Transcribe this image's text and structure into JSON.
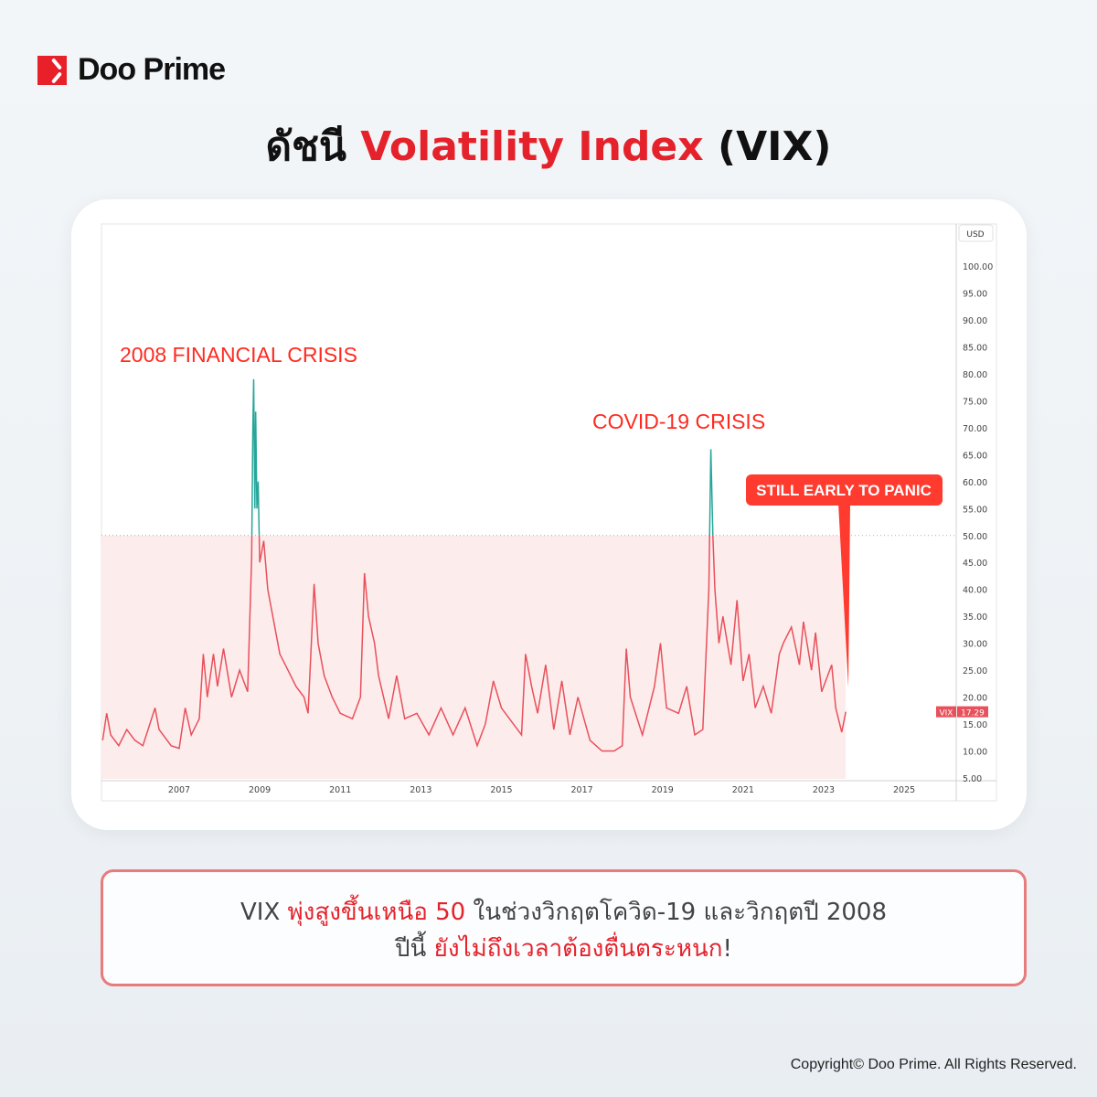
{
  "brand": {
    "name": "Doo Prime",
    "color": "#e8202a"
  },
  "title": {
    "prefix": "ดัชนี ",
    "highlight": "Volatility Index",
    "suffix": " (VIX)"
  },
  "chart_data": {
    "type": "line",
    "currency_label": "USD",
    "series": [
      {
        "name": "VIX",
        "last_value": "17.29",
        "color_below_50": "#e8505b",
        "color_above_50": "#26a69a",
        "points": [
          [
            2005.1,
            12
          ],
          [
            2005.2,
            17
          ],
          [
            2005.3,
            13
          ],
          [
            2005.5,
            11
          ],
          [
            2005.7,
            14
          ],
          [
            2005.9,
            12
          ],
          [
            2006.1,
            11
          ],
          [
            2006.4,
            18
          ],
          [
            2006.5,
            14
          ],
          [
            2006.8,
            11
          ],
          [
            2007.0,
            10.5
          ],
          [
            2007.15,
            18
          ],
          [
            2007.3,
            13
          ],
          [
            2007.5,
            16
          ],
          [
            2007.6,
            28
          ],
          [
            2007.7,
            20
          ],
          [
            2007.85,
            28
          ],
          [
            2007.95,
            22
          ],
          [
            2008.1,
            29
          ],
          [
            2008.3,
            20
          ],
          [
            2008.5,
            25
          ],
          [
            2008.7,
            21
          ],
          [
            2008.8,
            46
          ],
          [
            2008.83,
            70
          ],
          [
            2008.85,
            79
          ],
          [
            2008.88,
            55
          ],
          [
            2008.9,
            73
          ],
          [
            2008.93,
            55
          ],
          [
            2008.96,
            60
          ],
          [
            2009.0,
            45
          ],
          [
            2009.1,
            49
          ],
          [
            2009.2,
            40
          ],
          [
            2009.3,
            36
          ],
          [
            2009.5,
            28
          ],
          [
            2009.7,
            25
          ],
          [
            2009.9,
            22
          ],
          [
            2010.1,
            20
          ],
          [
            2010.2,
            17
          ],
          [
            2010.35,
            41
          ],
          [
            2010.45,
            30
          ],
          [
            2010.6,
            24
          ],
          [
            2010.8,
            20
          ],
          [
            2011.0,
            17
          ],
          [
            2011.3,
            16
          ],
          [
            2011.5,
            20
          ],
          [
            2011.6,
            43
          ],
          [
            2011.7,
            35
          ],
          [
            2011.85,
            30
          ],
          [
            2011.95,
            24
          ],
          [
            2012.2,
            16
          ],
          [
            2012.4,
            24
          ],
          [
            2012.6,
            16
          ],
          [
            2012.9,
            17
          ],
          [
            2013.2,
            13
          ],
          [
            2013.5,
            18
          ],
          [
            2013.8,
            13
          ],
          [
            2014.1,
            18
          ],
          [
            2014.4,
            11
          ],
          [
            2014.6,
            15
          ],
          [
            2014.8,
            23
          ],
          [
            2015.0,
            18
          ],
          [
            2015.5,
            13
          ],
          [
            2015.6,
            28
          ],
          [
            2015.75,
            22
          ],
          [
            2015.9,
            17
          ],
          [
            2016.1,
            26
          ],
          [
            2016.3,
            14
          ],
          [
            2016.5,
            23
          ],
          [
            2016.7,
            13
          ],
          [
            2016.9,
            20
          ],
          [
            2017.2,
            12
          ],
          [
            2017.5,
            10
          ],
          [
            2017.8,
            10
          ],
          [
            2018.0,
            11
          ],
          [
            2018.1,
            29
          ],
          [
            2018.2,
            20
          ],
          [
            2018.5,
            13
          ],
          [
            2018.8,
            22
          ],
          [
            2018.95,
            30
          ],
          [
            2019.1,
            18
          ],
          [
            2019.4,
            17
          ],
          [
            2019.6,
            22
          ],
          [
            2019.8,
            13
          ],
          [
            2020.0,
            14
          ],
          [
            2020.15,
            40
          ],
          [
            2020.2,
            66
          ],
          [
            2020.25,
            50
          ],
          [
            2020.3,
            40
          ],
          [
            2020.4,
            30
          ],
          [
            2020.5,
            35
          ],
          [
            2020.7,
            26
          ],
          [
            2020.85,
            38
          ],
          [
            2021.0,
            23
          ],
          [
            2021.15,
            28
          ],
          [
            2021.3,
            18
          ],
          [
            2021.5,
            22
          ],
          [
            2021.7,
            17
          ],
          [
            2021.9,
            28
          ],
          [
            2022.0,
            30
          ],
          [
            2022.2,
            33
          ],
          [
            2022.4,
            26
          ],
          [
            2022.5,
            34
          ],
          [
            2022.7,
            25
          ],
          [
            2022.8,
            32
          ],
          [
            2022.95,
            21
          ],
          [
            2023.2,
            26
          ],
          [
            2023.3,
            18
          ],
          [
            2023.45,
            13.5
          ],
          [
            2023.55,
            17.29
          ]
        ]
      }
    ],
    "threshold": 50,
    "ylim": [
      5,
      100
    ],
    "yticks": [
      "100.00",
      "95.00",
      "90.00",
      "85.00",
      "80.00",
      "75.00",
      "70.00",
      "65.00",
      "60.00",
      "55.00",
      "50.00",
      "45.00",
      "40.00",
      "35.00",
      "30.00",
      "25.00",
      "20.00",
      "15.00",
      "10.00",
      "5.00"
    ],
    "xlim": [
      2005.07,
      2026.3
    ],
    "xticks": [
      "2007",
      "2009",
      "2011",
      "2013",
      "2015",
      "2017",
      "2019",
      "2021",
      "2023",
      "2025"
    ],
    "annotations": [
      {
        "text": "2008 FINANCIAL CRISIS",
        "color": "#ff2a1f"
      },
      {
        "text": "COVID-19 CRISIS",
        "color": "#ff2a1f"
      },
      {
        "text": "STILL EARLY TO PANIC",
        "color": "#ff3a2e"
      }
    ]
  },
  "info": {
    "line1_a": "VIX ",
    "line1_red": "พุ่งสูงขึ้นเหนือ 50",
    "line1_b": " ในช่วงวิกฤตโควิด-19 และวิกฤตปี 2008",
    "line2_a": "ปีนี้ ",
    "line2_red": "ยังไม่ถึงเวลาต้องตื่นตระหนก",
    "line2_b": "!"
  },
  "copyright": "Copyright© Doo Prime. All Rights Reserved."
}
